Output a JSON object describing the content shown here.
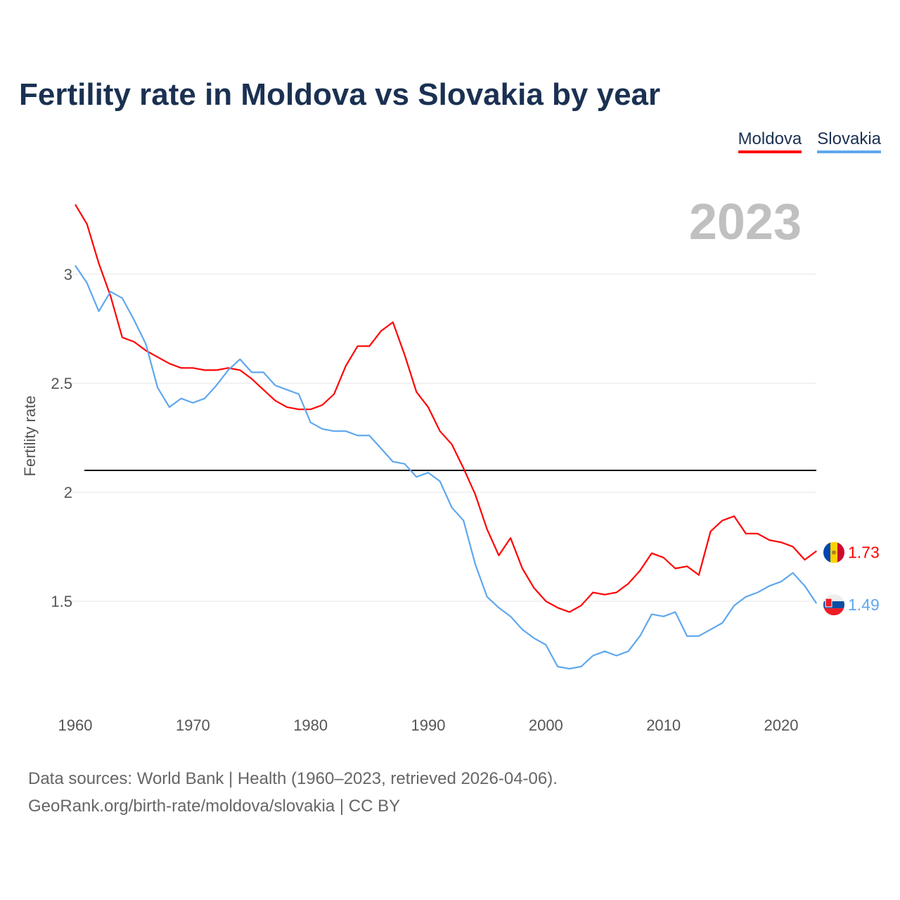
{
  "chart_data": {
    "type": "line",
    "title": "Fertility rate in Moldova vs Slovakia by year",
    "ylabel": "Fertility rate",
    "xlabel": "",
    "year_watermark": "2023",
    "xlim": [
      1960,
      2023
    ],
    "ylim": [
      1.05,
      3.4
    ],
    "x_ticks": [
      "1960",
      "1970",
      "1980",
      "1990",
      "2000",
      "2010",
      "2020"
    ],
    "y_ticks": [
      "1.5",
      "2",
      "2.5",
      "3"
    ],
    "reference_line": 2.1,
    "grid": true,
    "legend_position": "top-right",
    "x": [
      1960,
      1961,
      1962,
      1963,
      1964,
      1965,
      1966,
      1967,
      1968,
      1969,
      1970,
      1971,
      1972,
      1973,
      1974,
      1975,
      1976,
      1977,
      1978,
      1979,
      1980,
      1981,
      1982,
      1983,
      1984,
      1985,
      1986,
      1987,
      1988,
      1989,
      1990,
      1991,
      1992,
      1993,
      1994,
      1995,
      1996,
      1997,
      1998,
      1999,
      2000,
      2001,
      2002,
      2003,
      2004,
      2005,
      2006,
      2007,
      2008,
      2009,
      2010,
      2011,
      2012,
      2013,
      2014,
      2015,
      2016,
      2017,
      2018,
      2019,
      2020,
      2021,
      2022,
      2023
    ],
    "series": [
      {
        "name": "Moldova",
        "color": "#ff0000",
        "end_label": "1.73",
        "values": [
          3.32,
          3.23,
          3.05,
          2.9,
          2.71,
          2.69,
          2.65,
          2.62,
          2.59,
          2.57,
          2.57,
          2.56,
          2.56,
          2.57,
          2.56,
          2.52,
          2.47,
          2.42,
          2.39,
          2.38,
          2.38,
          2.4,
          2.45,
          2.58,
          2.67,
          2.67,
          2.74,
          2.78,
          2.63,
          2.46,
          2.39,
          2.28,
          2.22,
          2.11,
          1.99,
          1.83,
          1.71,
          1.79,
          1.65,
          1.56,
          1.5,
          1.47,
          1.45,
          1.48,
          1.54,
          1.53,
          1.54,
          1.58,
          1.64,
          1.72,
          1.7,
          1.65,
          1.66,
          1.62,
          1.82,
          1.87,
          1.89,
          1.81,
          1.81,
          1.78,
          1.77,
          1.75,
          1.69,
          1.73
        ]
      },
      {
        "name": "Slovakia",
        "color": "#5ea7ee",
        "end_label": "1.49",
        "values": [
          3.04,
          2.96,
          2.83,
          2.92,
          2.89,
          2.79,
          2.68,
          2.48,
          2.39,
          2.43,
          2.41,
          2.43,
          2.49,
          2.56,
          2.61,
          2.55,
          2.55,
          2.49,
          2.47,
          2.45,
          2.32,
          2.29,
          2.28,
          2.28,
          2.26,
          2.26,
          2.2,
          2.14,
          2.13,
          2.07,
          2.09,
          2.05,
          1.93,
          1.87,
          1.67,
          1.52,
          1.47,
          1.43,
          1.37,
          1.33,
          1.3,
          1.2,
          1.19,
          1.2,
          1.25,
          1.27,
          1.25,
          1.27,
          1.34,
          1.44,
          1.43,
          1.45,
          1.34,
          1.34,
          1.37,
          1.4,
          1.48,
          1.52,
          1.54,
          1.57,
          1.59,
          1.63,
          1.57,
          1.49
        ]
      }
    ]
  },
  "source": {
    "line1": "Data sources: World Bank | Health (1960–2023, retrieved 2026-04-06).",
    "line2": "GeoRank.org/birth-rate/moldova/slovakia | CC BY"
  }
}
